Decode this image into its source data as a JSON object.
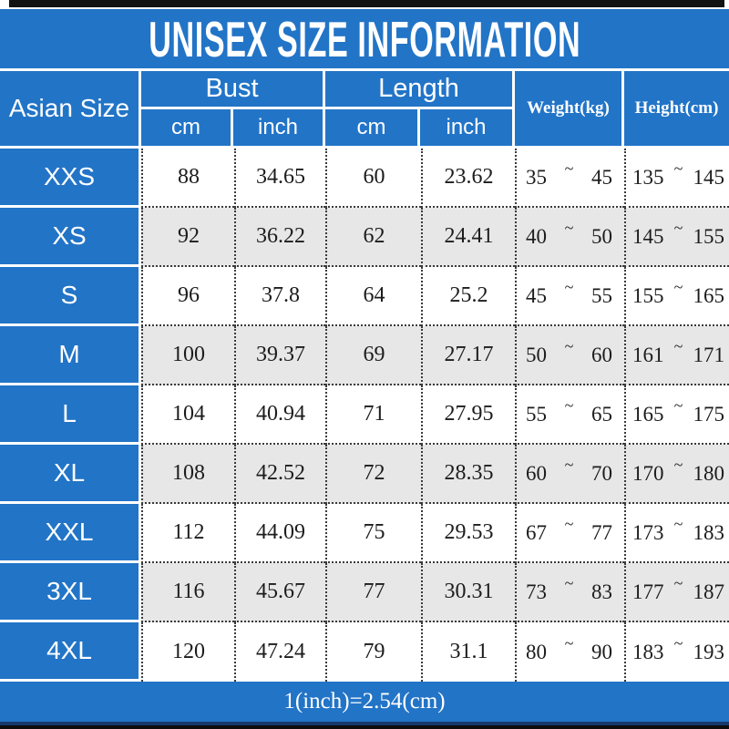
{
  "title": "UNISEX SIZE INFORMATION",
  "footer_note": "1(inch)=2.54(cm)",
  "symbols": {
    "tilde": "~"
  },
  "colors": {
    "blue": "#2274c7",
    "row_alt": "#e7e7e7",
    "top_bar": "#121212"
  },
  "header": {
    "size_col": "Asian Size",
    "bust": "Bust",
    "length": "Length",
    "cm": "cm",
    "inch": "inch",
    "weight": "Weight(kg)",
    "height": "Height(cm)"
  },
  "table": {
    "rows": [
      {
        "size": "XXS",
        "bust_cm": "88",
        "bust_inch": "34.65",
        "length_cm": "60",
        "length_inch": "23.62",
        "weight_min": "35",
        "weight_max": "45",
        "height_min": "135",
        "height_max": "145"
      },
      {
        "size": "XS",
        "bust_cm": "92",
        "bust_inch": "36.22",
        "length_cm": "62",
        "length_inch": "24.41",
        "weight_min": "40",
        "weight_max": "50",
        "height_min": "145",
        "height_max": "155"
      },
      {
        "size": "S",
        "bust_cm": "96",
        "bust_inch": "37.8",
        "length_cm": "64",
        "length_inch": "25.2",
        "weight_min": "45",
        "weight_max": "55",
        "height_min": "155",
        "height_max": "165"
      },
      {
        "size": "M",
        "bust_cm": "100",
        "bust_inch": "39.37",
        "length_cm": "69",
        "length_inch": "27.17",
        "weight_min": "50",
        "weight_max": "60",
        "height_min": "161",
        "height_max": "171"
      },
      {
        "size": "L",
        "bust_cm": "104",
        "bust_inch": "40.94",
        "length_cm": "71",
        "length_inch": "27.95",
        "weight_min": "55",
        "weight_max": "65",
        "height_min": "165",
        "height_max": "175"
      },
      {
        "size": "XL",
        "bust_cm": "108",
        "bust_inch": "42.52",
        "length_cm": "72",
        "length_inch": "28.35",
        "weight_min": "60",
        "weight_max": "70",
        "height_min": "170",
        "height_max": "180"
      },
      {
        "size": "XXL",
        "bust_cm": "112",
        "bust_inch": "44.09",
        "length_cm": "75",
        "length_inch": "29.53",
        "weight_min": "67",
        "weight_max": "77",
        "height_min": "173",
        "height_max": "183"
      },
      {
        "size": "3XL",
        "bust_cm": "116",
        "bust_inch": "45.67",
        "length_cm": "77",
        "length_inch": "30.31",
        "weight_min": "73",
        "weight_max": "83",
        "height_min": "177",
        "height_max": "187"
      },
      {
        "size": "4XL",
        "bust_cm": "120",
        "bust_inch": "47.24",
        "length_cm": "79",
        "length_inch": "31.1",
        "weight_min": "80",
        "weight_max": "90",
        "height_min": "183",
        "height_max": "193"
      }
    ]
  },
  "chart_data": {
    "type": "table",
    "title": "UNISEX SIZE INFORMATION",
    "columns": [
      "Asian Size",
      "Bust cm",
      "Bust inch",
      "Length cm",
      "Length inch",
      "Weight(kg)",
      "Height(cm)"
    ],
    "rows": [
      [
        "XXS",
        88,
        34.65,
        60,
        23.62,
        "35~45",
        "135~145"
      ],
      [
        "XS",
        92,
        36.22,
        62,
        24.41,
        "40~50",
        "145~155"
      ],
      [
        "S",
        96,
        37.8,
        64,
        25.2,
        "45~55",
        "155~165"
      ],
      [
        "M",
        100,
        39.37,
        69,
        27.17,
        "50~60",
        "161~171"
      ],
      [
        "L",
        104,
        40.94,
        71,
        27.95,
        "55~65",
        "165~175"
      ],
      [
        "XL",
        108,
        42.52,
        72,
        28.35,
        "60~70",
        "170~180"
      ],
      [
        "XXL",
        112,
        44.09,
        75,
        29.53,
        "67~77",
        "173~183"
      ],
      [
        "3XL",
        116,
        45.67,
        77,
        30.31,
        "73~83",
        "177~187"
      ],
      [
        "4XL",
        120,
        47.24,
        79,
        31.1,
        "80~90",
        "183~193"
      ]
    ],
    "note": "1(inch)=2.54(cm)"
  }
}
